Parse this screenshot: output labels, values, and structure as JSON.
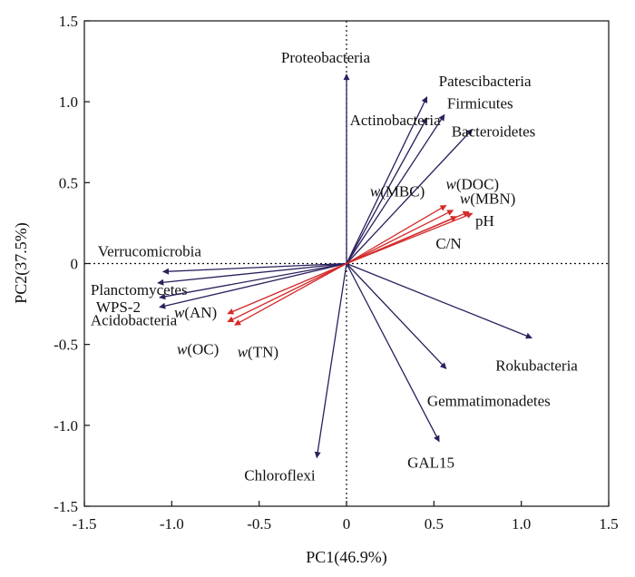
{
  "chart_data": {
    "type": "biplot",
    "xlabel": "PC1(46.9%)",
    "ylabel": "PC2(37.5%)",
    "xlim": [
      -1.5,
      1.5
    ],
    "ylim": [
      -1.5,
      1.5
    ],
    "xticks": [
      "-1.5",
      "-1.0",
      "-0.5",
      "0",
      "0.5",
      "1.0",
      "1.5"
    ],
    "yticks": [
      "-1.5",
      "-1.0",
      "-0.5",
      "0",
      "0.5",
      "1.0",
      "1.5"
    ],
    "reference_lines": "dotted at x=0 and y=0",
    "colors": {
      "bacteria": "#2b1f5c",
      "environment": "#d42a2a"
    },
    "bacteria": [
      {
        "name": "Proteobacteria",
        "x": 0.0,
        "y": 1.17
      },
      {
        "name": "Patescibacteria",
        "x": 0.46,
        "y": 1.03
      },
      {
        "name": "Actinobacteria",
        "x": 0.46,
        "y": 0.9
      },
      {
        "name": "Firmicutes",
        "x": 0.56,
        "y": 0.92
      },
      {
        "name": "Bacteroidetes",
        "x": 0.72,
        "y": 0.83
      },
      {
        "name": "Verrucomicrobia",
        "x": -1.05,
        "y": -0.05
      },
      {
        "name": "Planctomycetes",
        "x": -1.08,
        "y": -0.12
      },
      {
        "name": "WPS-2",
        "x": -1.07,
        "y": -0.21
      },
      {
        "name": "Acidobacteria",
        "x": -1.07,
        "y": -0.27
      },
      {
        "name": "Rokubacteria",
        "x": 1.06,
        "y": -0.46
      },
      {
        "name": "Gemmatimonadetes",
        "x": 0.57,
        "y": -0.65
      },
      {
        "name": "GAL15",
        "x": 0.53,
        "y": -1.1
      },
      {
        "name": "Chloroflexi",
        "x": -0.17,
        "y": -1.2
      }
    ],
    "environment": [
      {
        "name": "w(MBC)",
        "x": 0.57,
        "y": 0.36
      },
      {
        "name": "w(DOC)",
        "x": 0.61,
        "y": 0.33
      },
      {
        "name": "w(MBN)",
        "x": 0.7,
        "y": 0.32
      },
      {
        "name": "pH",
        "x": 0.72,
        "y": 0.31
      },
      {
        "name": "C/N",
        "x": 0.63,
        "y": 0.29
      },
      {
        "name": "w(AN)",
        "x": -0.68,
        "y": -0.31
      },
      {
        "name": "w(OC)",
        "x": -0.68,
        "y": -0.36
      },
      {
        "name": "w(TN)",
        "x": -0.64,
        "y": -0.38
      }
    ]
  }
}
